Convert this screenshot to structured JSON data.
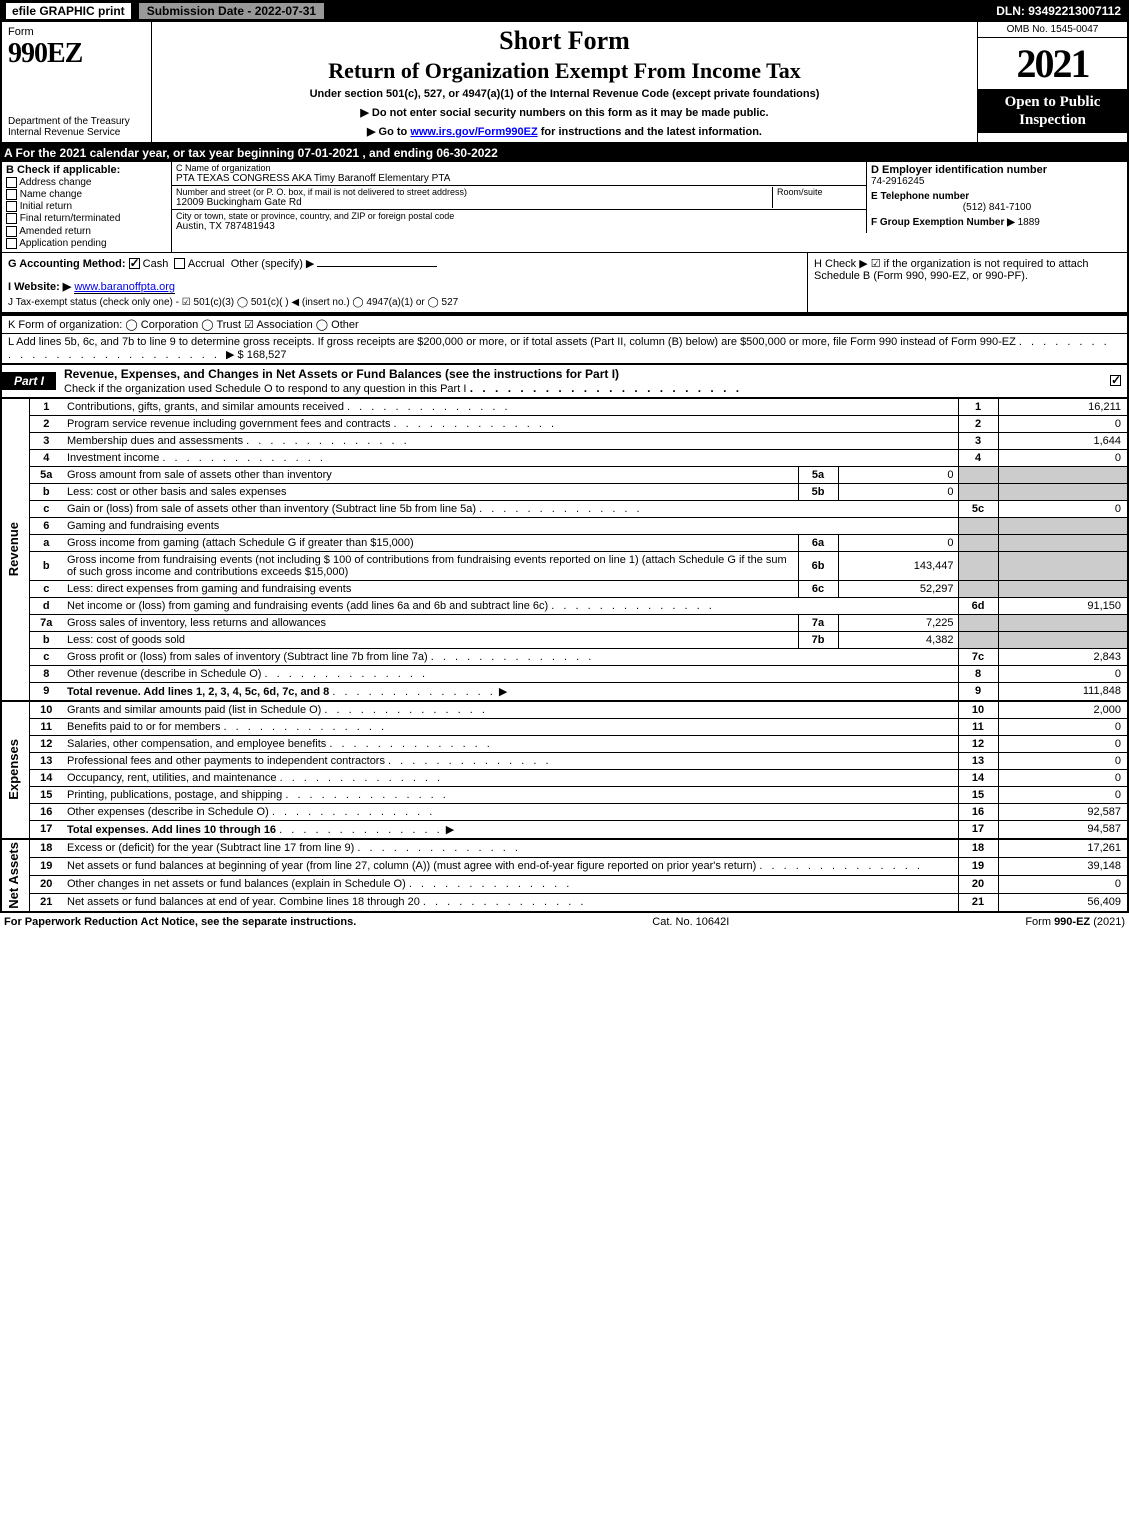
{
  "topbar": {
    "efile": "efile GRAPHIC print",
    "submission": "Submission Date - 2022-07-31",
    "dln": "DLN: 93492213007112"
  },
  "header": {
    "form_label": "Form",
    "form_number": "990EZ",
    "dept": "Department of the Treasury\nInternal Revenue Service",
    "short_form": "Short Form",
    "roe": "Return of Organization Exempt From Income Tax",
    "undersec": "Under section 501(c), 527, or 4947(a)(1) of the Internal Revenue Code (except private foundations)",
    "donot": "▶ Do not enter social security numbers on this form as it may be made public.",
    "goto_pre": "▶ Go to ",
    "goto_link": "www.irs.gov/Form990EZ",
    "goto_post": " for instructions and the latest information.",
    "omb": "OMB No. 1545-0047",
    "year": "2021",
    "open": "Open to Public Inspection"
  },
  "line_a": "A  For the 2021 calendar year, or tax year beginning 07-01-2021 , and ending 06-30-2022",
  "section_b": {
    "hdr": "B  Check if applicable:",
    "items": [
      "Address change",
      "Name change",
      "Initial return",
      "Final return/terminated",
      "Amended return",
      "Application pending"
    ]
  },
  "section_c": {
    "name_lbl": "C Name of organization",
    "name": "PTA TEXAS CONGRESS AKA Timy Baranoff Elementary PTA",
    "street_lbl": "Number and street (or P. O. box, if mail is not delivered to street address)",
    "street": "12009 Buckingham Gate Rd",
    "room_lbl": "Room/suite",
    "city_lbl": "City or town, state or province, country, and ZIP or foreign postal code",
    "city": "Austin, TX  787481943"
  },
  "section_d": {
    "ein_lbl": "D Employer identification number",
    "ein": "74-2916245",
    "tel_lbl": "E Telephone number",
    "tel": "(512) 841-7100",
    "grp_lbl": "F Group Exemption Number  ▶",
    "grp": "1889"
  },
  "line_g": {
    "lbl": "G Accounting Method:",
    "cash": "Cash",
    "accrual": "Accrual",
    "other": "Other (specify) ▶"
  },
  "line_h": "H  Check ▶ ☑ if the organization is not required to attach Schedule B (Form 990, 990-EZ, or 990-PF).",
  "line_i": {
    "lbl": "I Website: ▶",
    "val": "www.baranoffpta.org"
  },
  "line_j": "J Tax-exempt status (check only one) - ☑ 501(c)(3)  ◯ 501(c)(  ) ◀ (insert no.)  ◯ 4947(a)(1) or  ◯ 527",
  "line_k": "K Form of organization:  ◯ Corporation  ◯ Trust  ☑ Association  ◯ Other",
  "line_l": {
    "text": "L Add lines 5b, 6c, and 7b to line 9 to determine gross receipts. If gross receipts are $200,000 or more, or if total assets (Part II, column (B) below) are $500,000 or more, file Form 990 instead of Form 990-EZ",
    "val": "▶ $ 168,527"
  },
  "part1": {
    "tab": "Part I",
    "title": "Revenue, Expenses, and Changes in Net Assets or Fund Balances (see the instructions for Part I)",
    "sub": "Check if the organization used Schedule O to respond to any question in this Part I"
  },
  "side_labels": {
    "revenue": "Revenue",
    "expenses": "Expenses",
    "netassets": "Net Assets"
  },
  "revenue": [
    {
      "n": "1",
      "d": "Contributions, gifts, grants, and similar amounts received",
      "rn": "1",
      "rv": "16,211"
    },
    {
      "n": "2",
      "d": "Program service revenue including government fees and contracts",
      "rn": "2",
      "rv": "0"
    },
    {
      "n": "3",
      "d": "Membership dues and assessments",
      "rn": "3",
      "rv": "1,644"
    },
    {
      "n": "4",
      "d": "Investment income",
      "rn": "4",
      "rv": "0"
    },
    {
      "n": "5a",
      "d": "Gross amount from sale of assets other than inventory",
      "sn": "5a",
      "sv": "0"
    },
    {
      "n": "b",
      "d": "Less: cost or other basis and sales expenses",
      "sn": "5b",
      "sv": "0"
    },
    {
      "n": "c",
      "d": "Gain or (loss) from sale of assets other than inventory (Subtract line 5b from line 5a)",
      "rn": "5c",
      "rv": "0"
    },
    {
      "n": "6",
      "d": "Gaming and fundraising events"
    },
    {
      "n": "a",
      "d": "Gross income from gaming (attach Schedule G if greater than $15,000)",
      "sn": "6a",
      "sv": "0"
    },
    {
      "n": "b",
      "d": "Gross income from fundraising events (not including $  100  of contributions from fundraising events reported on line 1) (attach Schedule G if the sum of such gross income and contributions exceeds $15,000)",
      "sn": "6b",
      "sv": "143,447"
    },
    {
      "n": "c",
      "d": "Less: direct expenses from gaming and fundraising events",
      "sn": "6c",
      "sv": "52,297"
    },
    {
      "n": "d",
      "d": "Net income or (loss) from gaming and fundraising events (add lines 6a and 6b and subtract line 6c)",
      "rn": "6d",
      "rv": "91,150"
    },
    {
      "n": "7a",
      "d": "Gross sales of inventory, less returns and allowances",
      "sn": "7a",
      "sv": "7,225"
    },
    {
      "n": "b",
      "d": "Less: cost of goods sold",
      "sn": "7b",
      "sv": "4,382"
    },
    {
      "n": "c",
      "d": "Gross profit or (loss) from sales of inventory (Subtract line 7b from line 7a)",
      "rn": "7c",
      "rv": "2,843"
    },
    {
      "n": "8",
      "d": "Other revenue (describe in Schedule O)",
      "rn": "8",
      "rv": "0"
    },
    {
      "n": "9",
      "d": "Total revenue. Add lines 1, 2, 3, 4, 5c, 6d, 7c, and 8",
      "rn": "9",
      "rv": "111,848",
      "tot": true,
      "arrow": true
    }
  ],
  "expenses": [
    {
      "n": "10",
      "d": "Grants and similar amounts paid (list in Schedule O)",
      "rn": "10",
      "rv": "2,000"
    },
    {
      "n": "11",
      "d": "Benefits paid to or for members",
      "rn": "11",
      "rv": "0"
    },
    {
      "n": "12",
      "d": "Salaries, other compensation, and employee benefits",
      "rn": "12",
      "rv": "0"
    },
    {
      "n": "13",
      "d": "Professional fees and other payments to independent contractors",
      "rn": "13",
      "rv": "0"
    },
    {
      "n": "14",
      "d": "Occupancy, rent, utilities, and maintenance",
      "rn": "14",
      "rv": "0"
    },
    {
      "n": "15",
      "d": "Printing, publications, postage, and shipping",
      "rn": "15",
      "rv": "0"
    },
    {
      "n": "16",
      "d": "Other expenses (describe in Schedule O)",
      "rn": "16",
      "rv": "92,587"
    },
    {
      "n": "17",
      "d": "Total expenses. Add lines 10 through 16",
      "rn": "17",
      "rv": "94,587",
      "tot": true,
      "arrow": true
    }
  ],
  "netassets": [
    {
      "n": "18",
      "d": "Excess or (deficit) for the year (Subtract line 17 from line 9)",
      "rn": "18",
      "rv": "17,261"
    },
    {
      "n": "19",
      "d": "Net assets or fund balances at beginning of year (from line 27, column (A)) (must agree with end-of-year figure reported on prior year's return)",
      "rn": "19",
      "rv": "39,148"
    },
    {
      "n": "20",
      "d": "Other changes in net assets or fund balances (explain in Schedule O)",
      "rn": "20",
      "rv": "0"
    },
    {
      "n": "21",
      "d": "Net assets or fund balances at end of year. Combine lines 18 through 20",
      "rn": "21",
      "rv": "56,409"
    }
  ],
  "footer": {
    "left": "For Paperwork Reduction Act Notice, see the separate instructions.",
    "mid": "Cat. No. 10642I",
    "right_pre": "Form ",
    "right_form": "990-EZ",
    "right_post": " (2021)"
  },
  "colors": {
    "black": "#000000",
    "white": "#ffffff",
    "grey": "#999999",
    "shade": "#cccccc",
    "link": "#0000ff"
  }
}
